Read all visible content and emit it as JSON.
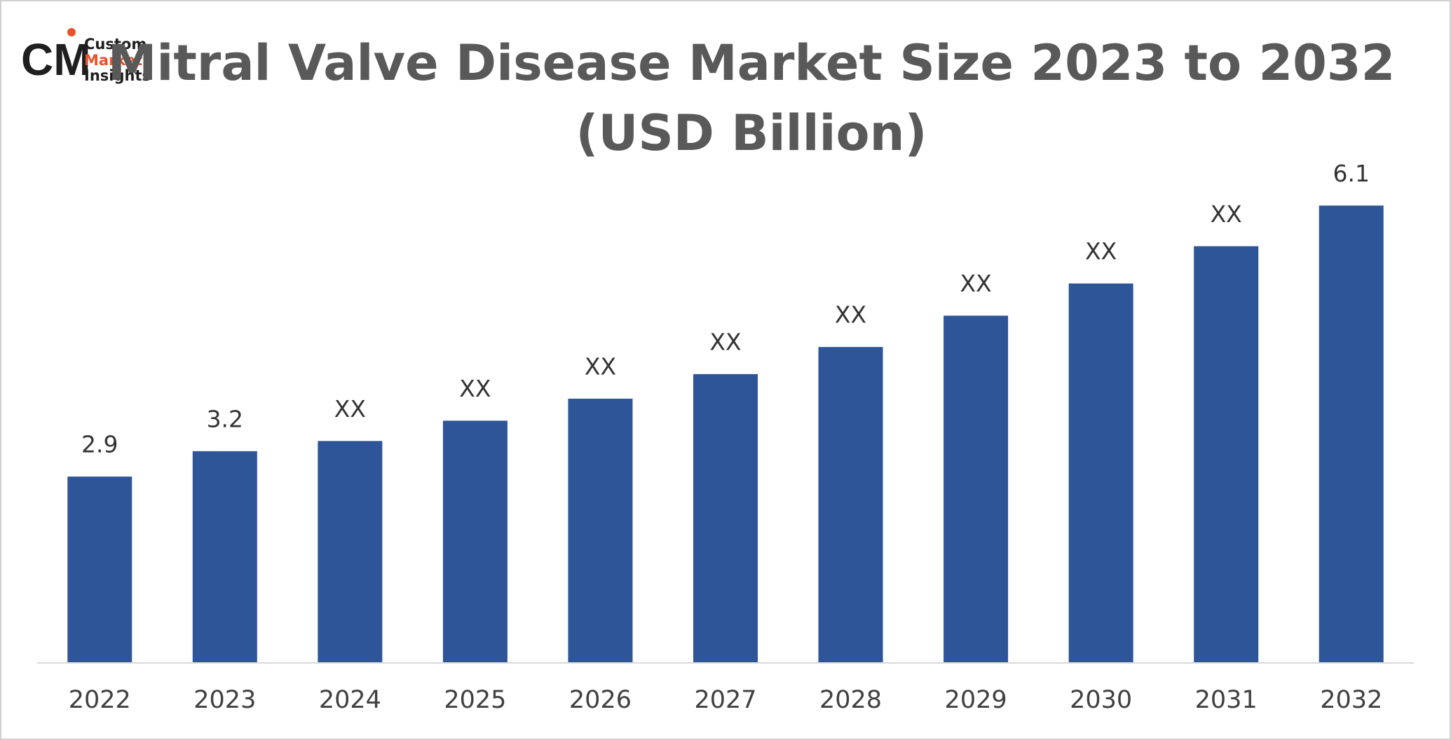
{
  "logo": {
    "lines": [
      "Custom",
      "Market",
      "Insights"
    ]
  },
  "chart_data": {
    "type": "bar",
    "title_lines": [
      "Mitral Valve Disease Market Size 2023 to 2032",
      "(USD Billion)"
    ],
    "categories": [
      "2022",
      "2023",
      "2024",
      "2025",
      "2026",
      "2027",
      "2028",
      "2029",
      "2030",
      "2031",
      "2032"
    ],
    "values": [
      2.9,
      3.2,
      3.32,
      3.56,
      3.82,
      4.11,
      4.43,
      4.8,
      5.18,
      5.62,
      6.1
    ],
    "value_labels": [
      "2.9",
      "3.2",
      "XX",
      "XX",
      "XX",
      "XX",
      "XX",
      "XX",
      "XX",
      "XX",
      "6.1"
    ],
    "color": "#2e5597",
    "ylim": [
      0.7,
      6.5
    ]
  }
}
